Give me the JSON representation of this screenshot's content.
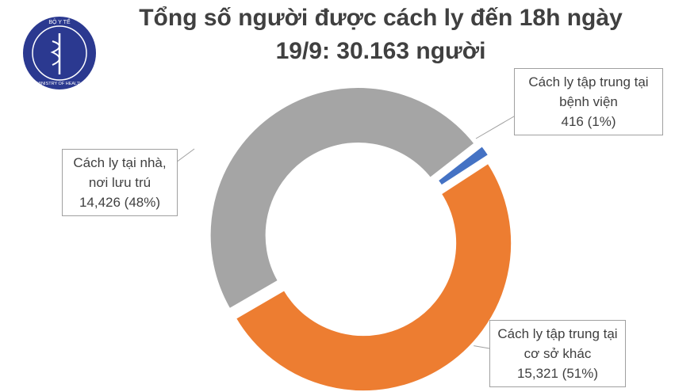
{
  "logo": {
    "top": "BỘ Y TẾ",
    "bottom": "MINISTRY OF HEALTH"
  },
  "chart_data": {
    "type": "donut",
    "title": "Tổng số người được cách ly đến 18h ngày 19/9: 30.163 người",
    "categories": [
      "Cách ly tập trung tại bệnh viện",
      "Cách ly tập trung tại cơ sở khác",
      "Cách ly tại nhà, nơi lưu trú"
    ],
    "values": [
      416,
      15321,
      14426
    ],
    "value_labels": [
      "416 (1%)",
      "15,321 (51%)",
      "14,426 (48%)"
    ],
    "colors": [
      "#4472c4",
      "#ed7d31",
      "#a5a5a5"
    ]
  }
}
